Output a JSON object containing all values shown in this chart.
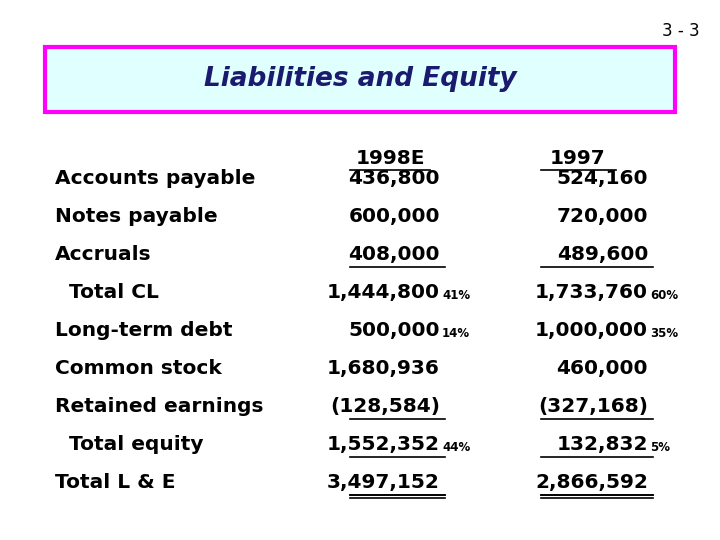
{
  "slide_number": "3 - 3",
  "title": "Liabilities and Equity",
  "title_bg": "#e0ffff",
  "title_border": "#ff00ff",
  "title_text_color": "#1a1a6e",
  "slide_bg": "#ffffff",
  "text_color": "#000000",
  "col1_header": "1998E",
  "col2_header": "1997",
  "rows": [
    {
      "label": "Accounts payable",
      "indent": false,
      "v1": "436,800",
      "v2": "524,160",
      "ul1": false,
      "ul2": false,
      "double_ul1": false,
      "double_ul2": false,
      "pct1": "",
      "pct2": ""
    },
    {
      "label": "Notes payable",
      "indent": false,
      "v1": "600,000",
      "v2": "720,000",
      "ul1": false,
      "ul2": false,
      "double_ul1": false,
      "double_ul2": false,
      "pct1": "",
      "pct2": ""
    },
    {
      "label": "Accruals",
      "indent": false,
      "v1": "408,000",
      "v2": "489,600",
      "ul1": true,
      "ul2": true,
      "double_ul1": false,
      "double_ul2": false,
      "pct1": "",
      "pct2": ""
    },
    {
      "label": "  Total CL",
      "indent": true,
      "v1": "1,444,800",
      "v2": "1,733,760",
      "ul1": false,
      "ul2": false,
      "double_ul1": false,
      "double_ul2": false,
      "pct1": "41%",
      "pct2": "60%"
    },
    {
      "label": "Long-term debt",
      "indent": false,
      "v1": "500,000",
      "v2": "1,000,000",
      "ul1": false,
      "ul2": false,
      "double_ul1": false,
      "double_ul2": false,
      "pct1": "14%",
      "pct2": "35%"
    },
    {
      "label": "Common stock",
      "indent": false,
      "v1": "1,680,936",
      "v2": "460,000",
      "ul1": false,
      "ul2": false,
      "double_ul1": false,
      "double_ul2": false,
      "pct1": "",
      "pct2": ""
    },
    {
      "label": "Retained earnings",
      "indent": false,
      "v1": "(128,584)",
      "v2": "(327,168)",
      "ul1": true,
      "ul2": true,
      "double_ul1": false,
      "double_ul2": false,
      "pct1": "",
      "pct2": ""
    },
    {
      "label": "  Total equity",
      "indent": true,
      "v1": "1,552,352",
      "v2": "132,832",
      "ul1": true,
      "ul2": true,
      "double_ul1": false,
      "double_ul2": false,
      "pct1": "44%",
      "pct2": "5%"
    },
    {
      "label": "Total L & E",
      "indent": false,
      "v1": "3,497,152",
      "v2": "2,866,592",
      "ul1": true,
      "ul2": true,
      "double_ul1": true,
      "double_ul2": true,
      "pct1": "",
      "pct2": ""
    }
  ],
  "font_size_main": 14.5,
  "font_size_small": 8.5,
  "font_size_title": 19,
  "font_size_slide_num": 12
}
